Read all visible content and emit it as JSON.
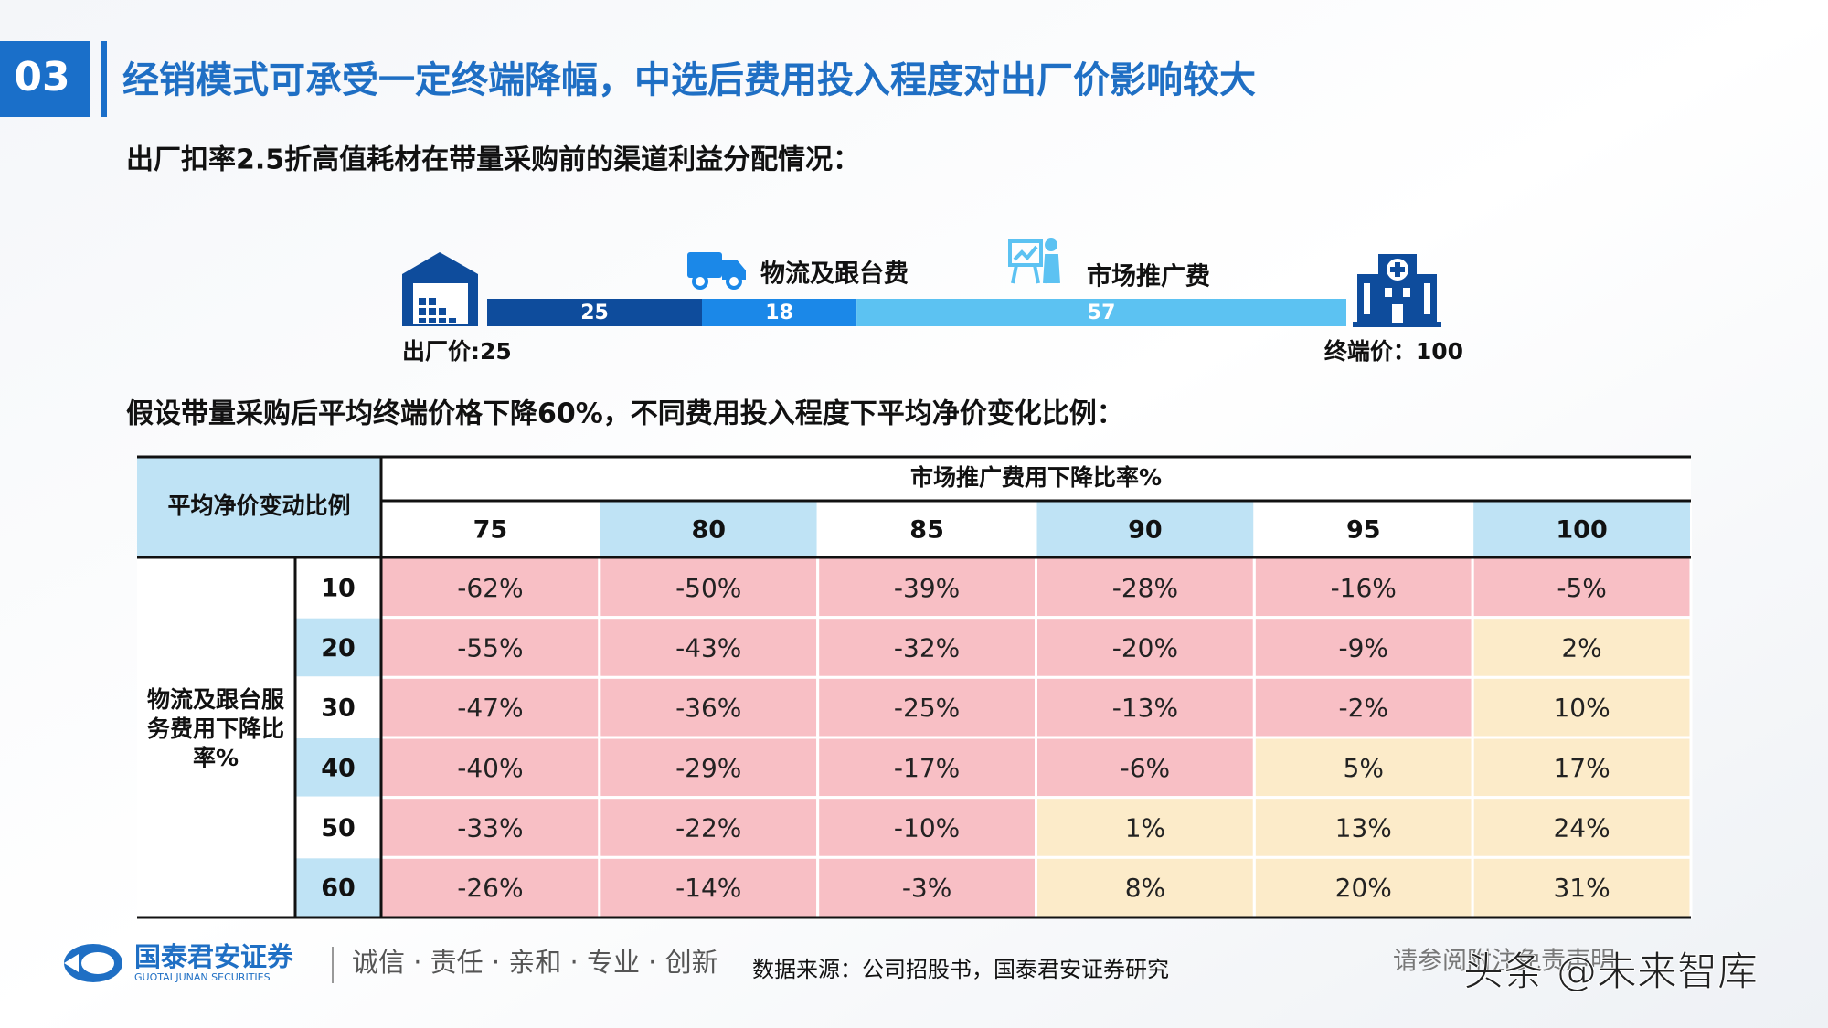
{
  "header": {
    "number": "03",
    "title": "经销模式可承受一定终端降幅，中选后费用投入程度对出厂价影响较大"
  },
  "section1": {
    "subtitle": "出厂扣率2.5折高值耗材在带量采购前的渠道利益分配情况：",
    "bar": {
      "segments": [
        {
          "value": 25,
          "color": "#0e4c9c"
        },
        {
          "value": 18,
          "color": "#1b88e8",
          "label": "物流及跟台费"
        },
        {
          "value": 57,
          "color": "#5cc2f2",
          "label": "市场推广费"
        }
      ],
      "start_label": "出厂价:25",
      "end_label": "终端价：100"
    }
  },
  "section2": {
    "subtitle": "假设带量采购后平均终端价格下降60%，不同费用投入程度下平均净价变化比例：",
    "table": {
      "corner": "平均净价变动比例",
      "column_title": "市场推广费用下降比率%",
      "row_title": "物流及跟台服务费用下降比率%",
      "columns": [
        75,
        80,
        85,
        90,
        95,
        100
      ],
      "rows": [
        10,
        20,
        30,
        40,
        50,
        60
      ],
      "cells": [
        [
          "-62%",
          "-50%",
          "-39%",
          "-28%",
          "-16%",
          "-5%"
        ],
        [
          "-55%",
          "-43%",
          "-32%",
          "-20%",
          "-9%",
          "2%"
        ],
        [
          "-47%",
          "-36%",
          "-25%",
          "-13%",
          "-2%",
          "10%"
        ],
        [
          "-40%",
          "-29%",
          "-17%",
          "-6%",
          "5%",
          "17%"
        ],
        [
          "-33%",
          "-22%",
          "-10%",
          "1%",
          "13%",
          "24%"
        ],
        [
          "-26%",
          "-14%",
          "-3%",
          "8%",
          "20%",
          "31%"
        ]
      ]
    }
  },
  "footer": {
    "company": "国泰君安证券",
    "company_en": "GUOTAI JUNAN SECURITIES",
    "slogan": "诚信 · 责任 · 亲和 · 专业 · 创新",
    "source": "数据来源：公司招股书，国泰君安证券研究",
    "disclaimer": "请参阅附注免责声明",
    "watermark": "头条 @未来智库"
  }
}
